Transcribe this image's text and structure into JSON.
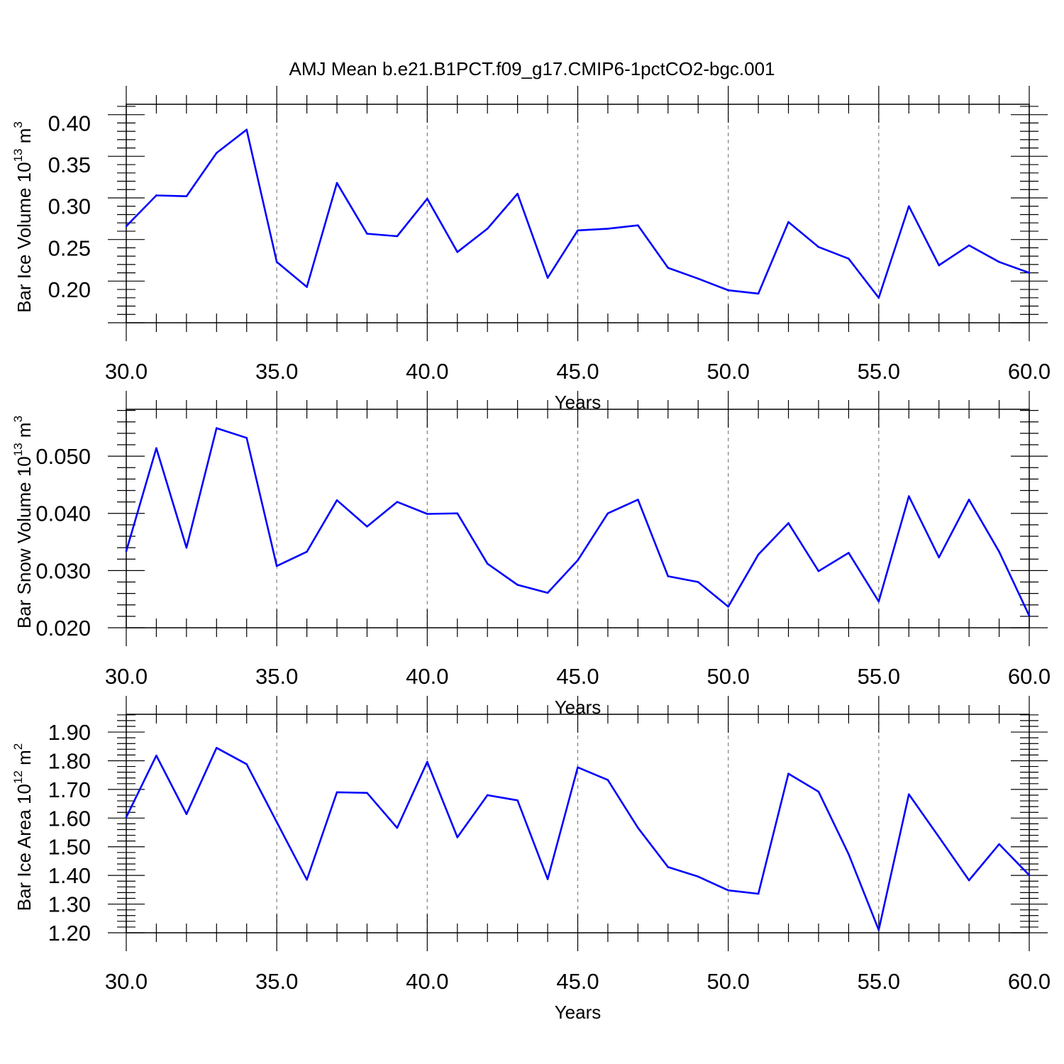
{
  "title": "AMJ Mean b.e21.B1PCT.f09_g17.CMIP6-1pctCO2-bgc.001",
  "colors": {
    "series": "#0000ff",
    "axis": "#000000",
    "grid": "#808080"
  },
  "chart_data": [
    {
      "type": "line",
      "ylabel": "Bar Ice Volume 10",
      "ylabel_exponent": "13",
      "ylabel_unit": " m",
      "ylabel_unit_exponent": "3",
      "xlabel": "Years",
      "xlim": [
        30,
        60
      ],
      "ylim": [
        0.16,
        0.4
      ],
      "x_ticks": [
        "30.0",
        "35.0",
        "40.0",
        "45.0",
        "50.0",
        "55.0",
        "60.0"
      ],
      "y_ticks": [
        "0.20",
        "0.25",
        "0.30",
        "0.35",
        "0.40"
      ],
      "grid": "dashed vertical lines at major x ticks",
      "x": [
        30,
        31,
        32,
        33,
        34,
        35,
        36,
        37,
        38,
        39,
        40,
        41,
        42,
        43,
        44,
        45,
        46,
        47,
        48,
        49,
        50,
        51,
        52,
        53,
        54,
        55,
        56,
        57,
        58,
        59,
        60
      ],
      "values": [
        0.276,
        0.313,
        0.312,
        0.364,
        0.392,
        0.233,
        0.203,
        0.328,
        0.267,
        0.264,
        0.309,
        0.245,
        0.273,
        0.315,
        0.214,
        0.271,
        0.273,
        0.277,
        0.226,
        0.213,
        0.199,
        0.195,
        0.281,
        0.251,
        0.237,
        0.19,
        0.3,
        0.229,
        0.253,
        0.233,
        0.22
      ]
    },
    {
      "type": "line",
      "ylabel": "Bar Snow Volume 10",
      "ylabel_exponent": "13",
      "ylabel_unit": " m",
      "ylabel_unit_exponent": "3",
      "xlabel": "Years",
      "xlim": [
        30,
        60
      ],
      "ylim": [
        0.02,
        0.055
      ],
      "x_ticks": [
        "30.0",
        "35.0",
        "40.0",
        "45.0",
        "50.0",
        "55.0",
        "60.0"
      ],
      "y_ticks": [
        "0.020",
        "0.030",
        "0.040",
        "0.050"
      ],
      "grid": "dashed vertical lines at major x ticks",
      "x": [
        30,
        31,
        32,
        33,
        34,
        35,
        36,
        37,
        38,
        39,
        40,
        41,
        42,
        43,
        44,
        45,
        46,
        47,
        48,
        49,
        50,
        51,
        52,
        53,
        54,
        55,
        56,
        57,
        58,
        59,
        60
      ],
      "values": [
        0.0334,
        0.0514,
        0.034,
        0.0549,
        0.0532,
        0.0308,
        0.0333,
        0.0423,
        0.0377,
        0.042,
        0.0399,
        0.04,
        0.0312,
        0.0275,
        0.0261,
        0.0318,
        0.04,
        0.0424,
        0.029,
        0.028,
        0.0237,
        0.0328,
        0.0383,
        0.0299,
        0.0331,
        0.0246,
        0.043,
        0.0323,
        0.0424,
        0.0333,
        0.0221
      ]
    },
    {
      "type": "line",
      "ylabel": "Bar Ice Area 10",
      "ylabel_exponent": "12",
      "ylabel_unit": " m",
      "ylabel_unit_exponent": "2",
      "xlabel": "Years",
      "xlim": [
        30,
        60
      ],
      "ylim": [
        1.2,
        1.9
      ],
      "x_ticks": [
        "30.0",
        "35.0",
        "40.0",
        "45.0",
        "50.0",
        "55.0",
        "60.0"
      ],
      "y_ticks": [
        "1.20",
        "1.30",
        "1.40",
        "1.50",
        "1.60",
        "1.70",
        "1.80",
        "1.90"
      ],
      "grid": "dashed vertical lines at major x ticks",
      "x": [
        30,
        31,
        32,
        33,
        34,
        35,
        36,
        37,
        38,
        39,
        40,
        41,
        42,
        43,
        44,
        45,
        46,
        47,
        48,
        49,
        50,
        51,
        52,
        53,
        54,
        55,
        56,
        57,
        58,
        59,
        60
      ],
      "values": [
        1.603,
        1.818,
        1.614,
        1.845,
        1.788,
        1.586,
        1.385,
        1.69,
        1.688,
        1.566,
        1.796,
        1.533,
        1.68,
        1.662,
        1.387,
        1.777,
        1.733,
        1.566,
        1.429,
        1.396,
        1.348,
        1.336,
        1.755,
        1.692,
        1.474,
        1.21,
        1.683,
        1.534,
        1.383,
        1.509,
        1.401
      ]
    }
  ]
}
